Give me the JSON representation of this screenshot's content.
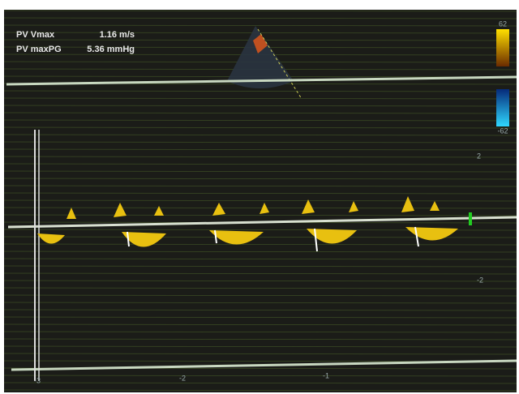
{
  "measurements": [
    {
      "label": "PV Vmax",
      "value": "1.16 m/s"
    },
    {
      "label": "PV maxPG",
      "value": "5.36 mmHg"
    }
  ],
  "color_bar": {
    "top": "62",
    "bottom": "-62"
  },
  "velocity_scale": [
    "2",
    "-2"
  ],
  "time_scale": [
    "-3",
    "-2",
    "-1"
  ]
}
